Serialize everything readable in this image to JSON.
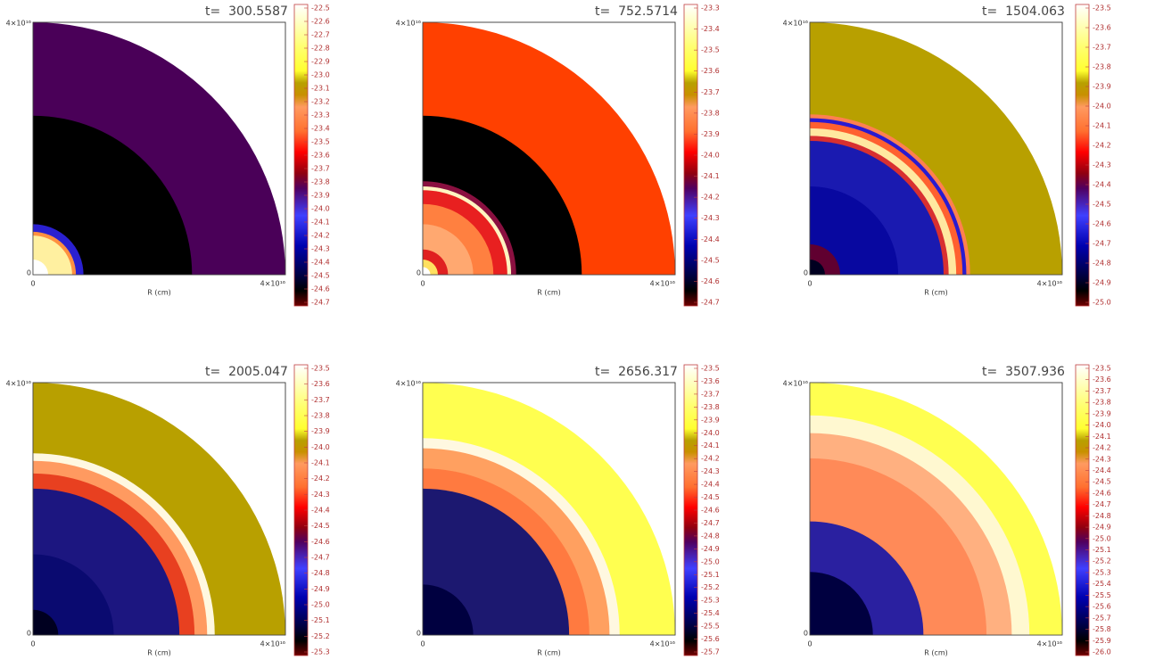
{
  "panels": [
    {
      "title": "t=  300.5587",
      "x_label": "R (cm)",
      "x_ticks": [
        "0",
        "4×10¹⁶"
      ],
      "y_ticks": [
        "0",
        "4×10¹⁶"
      ],
      "colorbar_labels": [
        "-22.5",
        "-22.6",
        "-22.7",
        "-22.8",
        "-22.9",
        "-23.0",
        "-23.1",
        "-23.2",
        "-23.3",
        "-23.4",
        "-23.5",
        "-23.6",
        "-23.7",
        "-23.8",
        "-23.9",
        "-24.0",
        "-24.1",
        "-24.2",
        "-24.3",
        "-24.4",
        "-24.5",
        "-24.6",
        "-24.7"
      ]
    },
    {
      "title": "t=  752.5714",
      "x_label": "R (cm)",
      "x_ticks": [
        "0",
        "4×10¹⁶"
      ],
      "y_ticks": [
        "0",
        "4×10¹⁶"
      ],
      "colorbar_labels": [
        "-23.3",
        "-23.4",
        "-23.5",
        "-23.6",
        "-23.7",
        "-23.8",
        "-23.9",
        "-24.0",
        "-24.1",
        "-24.2",
        "-24.3",
        "-24.4",
        "-24.5",
        "-24.6",
        "-24.7"
      ]
    },
    {
      "title": "t=  1504.063",
      "x_label": "R (cm)",
      "x_ticks": [
        "0",
        "4×10¹⁶"
      ],
      "y_ticks": [
        "0",
        "4×10¹⁶"
      ],
      "colorbar_labels": [
        "-23.5",
        "-23.6",
        "-23.7",
        "-23.8",
        "-23.9",
        "-24.0",
        "-24.1",
        "-24.2",
        "-24.3",
        "-24.4",
        "-24.5",
        "-24.6",
        "-24.7",
        "-24.8",
        "-24.9",
        "-25.0"
      ]
    },
    {
      "title": "t=  2005.047",
      "x_label": "R (cm)",
      "x_ticks": [
        "0",
        "4×10¹⁶"
      ],
      "y_ticks": [
        "0",
        "4×10¹⁶"
      ],
      "colorbar_labels": [
        "-23.5",
        "-23.6",
        "-23.7",
        "-23.8",
        "-23.9",
        "-24.0",
        "-24.1",
        "-24.2",
        "-24.3",
        "-24.4",
        "-24.5",
        "-24.6",
        "-24.7",
        "-24.8",
        "-24.9",
        "-25.0",
        "-25.1",
        "-25.2",
        "-25.3"
      ]
    },
    {
      "title": "t=  2656.317",
      "x_label": "R (cm)",
      "x_ticks": [
        "0",
        "4×10¹⁶"
      ],
      "y_ticks": [
        "0",
        "4×10¹⁶"
      ],
      "colorbar_labels": [
        "-23.5",
        "-23.6",
        "-23.7",
        "-23.8",
        "-23.9",
        "-24.0",
        "-24.1",
        "-24.2",
        "-24.3",
        "-24.4",
        "-24.5",
        "-24.6",
        "-24.7",
        "-24.8",
        "-24.9",
        "-25.0",
        "-25.1",
        "-25.2",
        "-25.3",
        "-25.4",
        "-25.5",
        "-25.6",
        "-25.7"
      ]
    },
    {
      "title": "t=  3507.936",
      "x_label": "R (cm)",
      "x_ticks": [
        "0",
        "4×10¹⁶"
      ],
      "y_ticks": [
        "0",
        "4×10¹⁶"
      ],
      "colorbar_labels": [
        "-23.5",
        "-23.6",
        "-23.7",
        "-23.8",
        "-23.9",
        "-24.0",
        "-24.1",
        "-24.2",
        "-24.3",
        "-24.4",
        "-24.5",
        "-24.6",
        "-24.7",
        "-24.8",
        "-24.9",
        "-25.0",
        "-25.1",
        "-25.2",
        "-25.3",
        "-25.4",
        "-25.5",
        "-25.6",
        "-25.7",
        "-25.8",
        "-25.9",
        "-26.0"
      ]
    }
  ]
}
